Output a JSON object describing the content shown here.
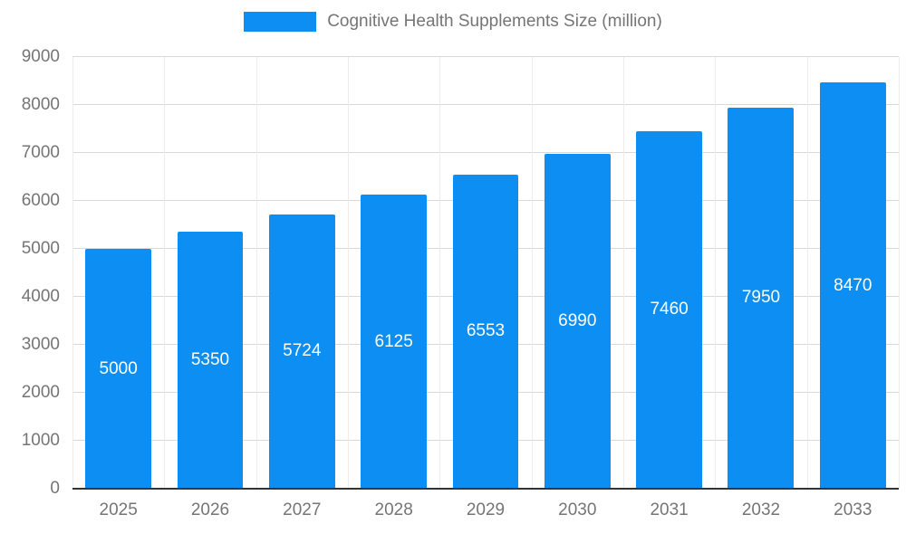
{
  "legend": {
    "label": "Cognitive Health Supplements Size (million)"
  },
  "chart_data": {
    "type": "bar",
    "title": "Cognitive Health Supplements Size (million)",
    "categories": [
      "2025",
      "2026",
      "2027",
      "2028",
      "2029",
      "2030",
      "2031",
      "2032",
      "2033"
    ],
    "values": [
      5000,
      5350,
      5724,
      6125,
      6553,
      6990,
      7460,
      7950,
      8470
    ],
    "xlabel": "",
    "ylabel": "",
    "ylim": [
      0,
      9000
    ],
    "yticks": [
      0,
      1000,
      2000,
      3000,
      4000,
      5000,
      6000,
      7000,
      8000,
      9000
    ],
    "grid": true,
    "legend_position": "top",
    "bar_color": "#0d8ef2",
    "value_label_color": "#ffffff",
    "axis_text_color": "#757575",
    "gridline_color": "#d9d9d9",
    "baseline_color": "#333333"
  }
}
